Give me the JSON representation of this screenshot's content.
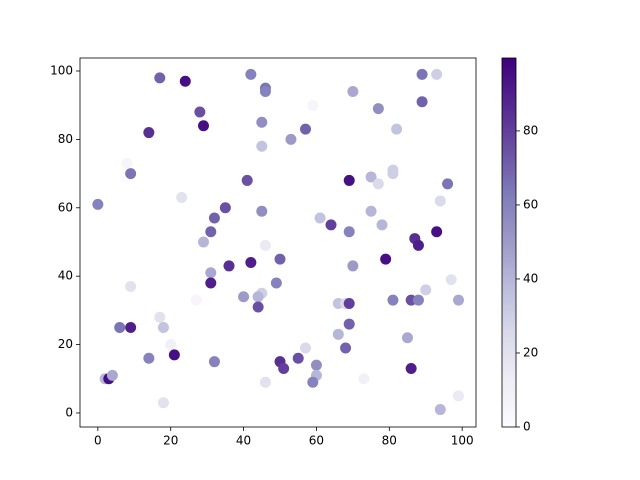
{
  "chart_data": {
    "type": "scatter",
    "x": [
      17,
      24,
      42,
      46,
      46,
      89,
      93,
      28,
      29,
      14,
      45,
      59,
      70,
      77,
      89,
      57,
      53,
      45,
      82,
      8,
      9,
      41,
      69,
      75,
      77,
      81,
      81,
      96,
      0,
      23,
      94,
      35,
      32,
      45,
      61,
      64,
      75,
      78,
      31,
      69,
      93,
      87,
      88,
      29,
      46,
      50,
      79,
      36,
      42,
      70,
      31,
      27,
      97,
      9,
      31,
      49,
      90,
      40,
      45,
      44,
      66,
      68,
      69,
      81,
      86,
      88,
      99,
      44,
      17,
      18,
      6,
      9,
      69,
      66,
      85,
      20,
      68,
      57,
      14,
      21,
      32,
      55,
      50,
      51,
      60,
      86,
      60,
      59,
      46,
      73,
      2,
      3,
      4,
      18,
      94,
      99
    ],
    "values": [
      98,
      97,
      99,
      95,
      94,
      99,
      99,
      88,
      84,
      82,
      85,
      90,
      94,
      89,
      91,
      83,
      80,
      78,
      83,
      73,
      70,
      68,
      68,
      69,
      67,
      71,
      70,
      67,
      61,
      63,
      62,
      60,
      57,
      59,
      57,
      55,
      59,
      55,
      53,
      53,
      53,
      51,
      49,
      50,
      49,
      45,
      45,
      43,
      44,
      43,
      41,
      33,
      39,
      37,
      38,
      38,
      36,
      34,
      35,
      34,
      32,
      32,
      32,
      33,
      33,
      33,
      33,
      31,
      28,
      25,
      25,
      25,
      26,
      23,
      22,
      20,
      19,
      19,
      16,
      17,
      15,
      16,
      15,
      13,
      14,
      13,
      11,
      9,
      9,
      10,
      10,
      10,
      11,
      3,
      1,
      5
    ],
    "color_values": [
      70,
      95,
      60,
      65,
      60,
      65,
      30,
      75,
      95,
      85,
      55,
      5,
      45,
      55,
      70,
      70,
      50,
      35,
      35,
      5,
      65,
      75,
      95,
      40,
      25,
      30,
      30,
      65,
      60,
      20,
      25,
      75,
      70,
      55,
      35,
      80,
      40,
      40,
      70,
      60,
      95,
      85,
      90,
      40,
      15,
      70,
      95,
      85,
      90,
      50,
      45,
      5,
      20,
      20,
      90,
      60,
      30,
      50,
      30,
      40,
      35,
      25,
      80,
      60,
      75,
      60,
      45,
      75,
      20,
      35,
      65,
      90,
      70,
      40,
      45,
      10,
      70,
      25,
      60,
      95,
      60,
      75,
      85,
      80,
      55,
      90,
      40,
      60,
      20,
      10,
      40,
      95,
      45,
      20,
      40,
      15
    ],
    "colormap": [
      "#fcfbfd",
      "#efedf5",
      "#dadaeb",
      "#bcbddc",
      "#9e9ac8",
      "#807dba",
      "#6a51a3",
      "#54278f",
      "#3f007d"
    ],
    "xlim": [
      -4.9,
      103.8
    ],
    "ylim": [
      -4.1,
      103.8
    ],
    "xticks": [
      0,
      20,
      40,
      60,
      80,
      100
    ],
    "yticks": [
      0,
      20,
      40,
      60,
      80,
      100
    ],
    "clim": [
      0,
      99.7
    ],
    "colorbar_ticks": [
      0,
      20,
      40,
      60,
      80
    ]
  }
}
